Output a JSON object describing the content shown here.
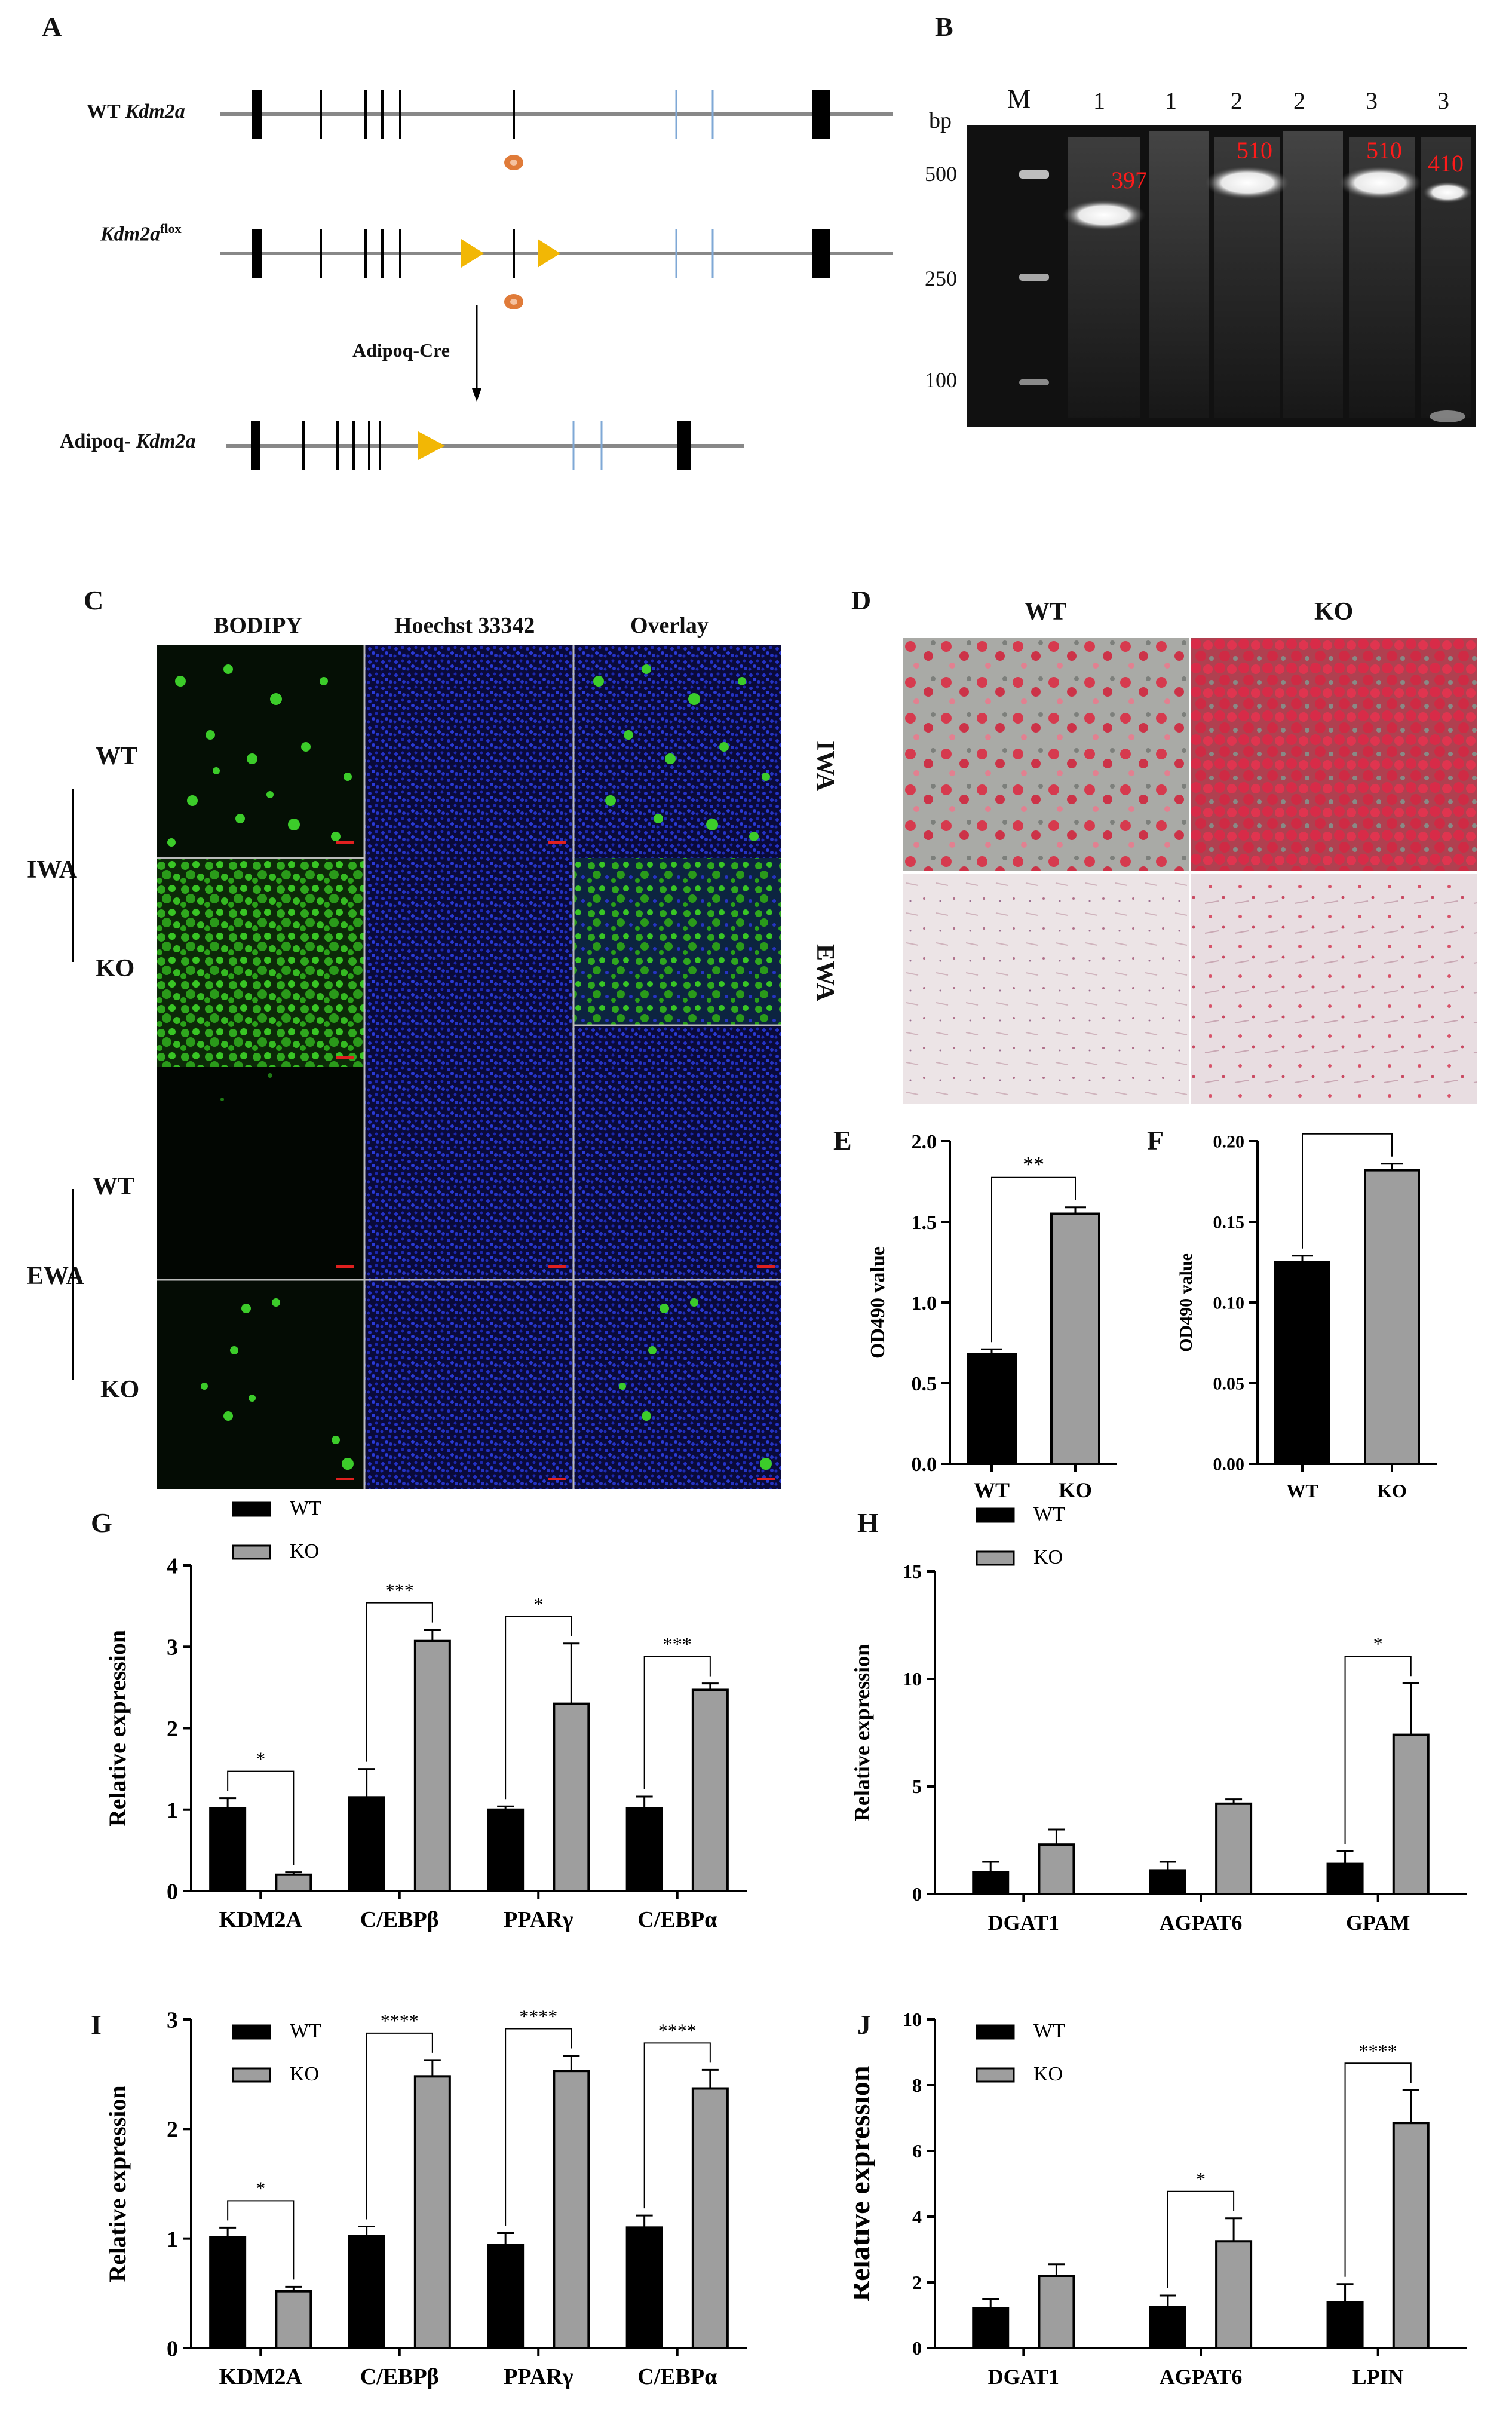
{
  "panel_letters": [
    "A",
    "B",
    "C",
    "D",
    "E",
    "F",
    "G",
    "H",
    "I",
    "J"
  ],
  "panelA": {
    "rows": [
      {
        "label_plain": "WT ",
        "label_italic": "Kdm2a",
        "label_sup": ""
      },
      {
        "label_plain": "",
        "label_italic": "Kdm2a",
        "label_sup": "flox"
      },
      {
        "label_plain": "Adipoq- ",
        "label_italic": "Kdm2a",
        "label_sup": ""
      }
    ],
    "arrow_label": "Adipoq-Cre",
    "colors": {
      "exon": "#000000",
      "loxp": "#f2b705",
      "marker": "#e07b39",
      "blue_exon": "#7fa8d6"
    }
  },
  "panelB": {
    "bp_label": "bp",
    "lanes": [
      "M",
      "1",
      "1",
      "2",
      "2",
      "3",
      "3"
    ],
    "ladder": [
      "500",
      "250",
      "100"
    ],
    "band_labels": [
      "397",
      "510",
      "510",
      "410"
    ],
    "band_label_color": "#ff1a1a"
  },
  "panelC": {
    "columns": [
      "BODIPY",
      "Hoechst 33342",
      "Overlay"
    ],
    "row_labels": [
      "WT",
      "KO",
      "WT",
      "KO"
    ],
    "groups": [
      "IWA",
      "EWA"
    ]
  },
  "panelD": {
    "columns": [
      "WT",
      "KO"
    ],
    "rows": [
      "IWA",
      "EWA"
    ]
  },
  "chart_data": [
    {
      "panel": "E",
      "type": "bar",
      "categories": [
        "WT",
        "KO"
      ],
      "values": [
        0.68,
        1.55
      ],
      "errors": [
        0.03,
        0.04
      ],
      "ylabel": "OD490 value",
      "ylim": [
        0,
        2.0
      ],
      "yticks": [
        "0.0",
        "0.5",
        "1.0",
        "1.5",
        "2.0"
      ],
      "significance": [
        {
          "label": "**",
          "from": 0,
          "to": 1
        }
      ],
      "colors": [
        "#000000",
        "#9e9e9e"
      ]
    },
    {
      "panel": "F",
      "type": "bar",
      "categories": [
        "WT",
        "KO"
      ],
      "values": [
        0.125,
        0.182
      ],
      "errors": [
        0.004,
        0.004
      ],
      "ylabel": "OD490 value",
      "ylim": [
        0,
        0.2
      ],
      "yticks": [
        "0.00",
        "0.05",
        "0.10",
        "0.15",
        "0.20"
      ],
      "significance": [
        {
          "label": "*",
          "from": 0,
          "to": 1
        }
      ],
      "colors": [
        "#000000",
        "#9e9e9e"
      ]
    },
    {
      "panel": "G",
      "type": "bar",
      "categories": [
        "KDM2A",
        "C/EBPβ",
        "PPARγ",
        "C/EBPα"
      ],
      "series": [
        {
          "name": "WT",
          "values": [
            1.02,
            1.15,
            1.0,
            1.02
          ],
          "errors": [
            0.12,
            0.35,
            0.04,
            0.14
          ]
        },
        {
          "name": "KO",
          "values": [
            0.2,
            3.07,
            2.3,
            2.47
          ],
          "errors": [
            0.03,
            0.14,
            0.74,
            0.08
          ]
        }
      ],
      "ylabel": "Relative expression",
      "ylim": [
        0,
        4
      ],
      "yticks": [
        "0",
        "1",
        "2",
        "3",
        "4"
      ],
      "significance": [
        "*",
        "***",
        "*",
        "***"
      ],
      "legend": "top-left",
      "colors": [
        "#000000",
        "#9e9e9e"
      ]
    },
    {
      "panel": "H",
      "type": "bar",
      "categories": [
        "DGAT1",
        "AGPAT6",
        "GPAM"
      ],
      "series": [
        {
          "name": "WT",
          "values": [
            1.0,
            1.1,
            1.4
          ],
          "errors": [
            0.5,
            0.4,
            0.6
          ]
        },
        {
          "name": "KO",
          "values": [
            2.3,
            4.2,
            7.4
          ],
          "errors": [
            0.7,
            0.2,
            2.4
          ]
        }
      ],
      "ylabel": "Relative expression",
      "ylim": [
        0,
        15
      ],
      "yticks": [
        "0",
        "5",
        "10",
        "15"
      ],
      "significance": [
        "",
        "",
        "*"
      ],
      "legend": "top-left",
      "colors": [
        "#000000",
        "#9e9e9e"
      ]
    },
    {
      "panel": "I",
      "type": "bar",
      "categories": [
        "KDM2A",
        "C/EBPβ",
        "PPARγ",
        "C/EBPα"
      ],
      "series": [
        {
          "name": "WT",
          "values": [
            1.01,
            1.02,
            0.94,
            1.1
          ],
          "errors": [
            0.09,
            0.09,
            0.11,
            0.11
          ]
        },
        {
          "name": "KO",
          "values": [
            0.52,
            2.48,
            2.53,
            2.37
          ],
          "errors": [
            0.04,
            0.15,
            0.14,
            0.17
          ]
        }
      ],
      "ylabel": "Relative expression",
      "ylim": [
        0,
        3
      ],
      "yticks": [
        "0",
        "1",
        "2",
        "3"
      ],
      "significance": [
        "*",
        "****",
        "****",
        "****"
      ],
      "legend": "top-left",
      "colors": [
        "#000000",
        "#9e9e9e"
      ]
    },
    {
      "panel": "J",
      "type": "bar",
      "categories": [
        "DGAT1",
        "AGPAT6",
        "LPIN"
      ],
      "series": [
        {
          "name": "WT",
          "values": [
            1.2,
            1.25,
            1.4
          ],
          "errors": [
            0.3,
            0.35,
            0.55
          ]
        },
        {
          "name": "KO",
          "values": [
            2.2,
            3.25,
            6.85
          ],
          "errors": [
            0.35,
            0.7,
            1.0
          ]
        }
      ],
      "ylabel": "Relative expression",
      "ylim": [
        0,
        10
      ],
      "yticks": [
        "0",
        "2",
        "4",
        "6",
        "8",
        "10"
      ],
      "significance": [
        "",
        "*",
        "****"
      ],
      "legend": "top-left",
      "colors": [
        "#000000",
        "#9e9e9e"
      ]
    }
  ]
}
